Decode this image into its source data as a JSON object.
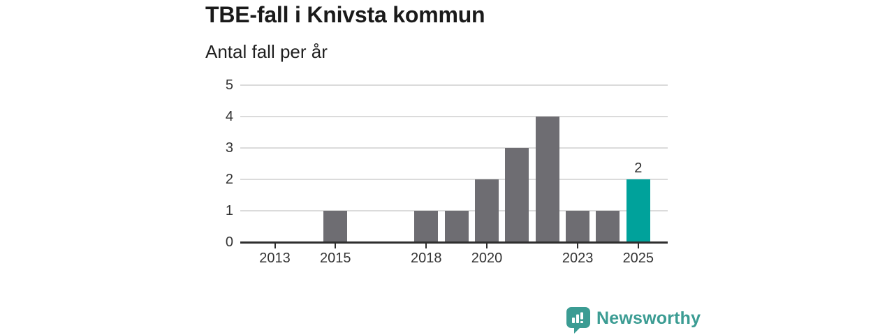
{
  "chart": {
    "title": "TBE-fall i Knivsta kommun",
    "subtitle": "Antal fall per år"
  },
  "chart_data": {
    "type": "bar",
    "title": "TBE-fall i Knivsta kommun",
    "subtitle": "Antal fall per år",
    "categories": [
      2012,
      2013,
      2014,
      2015,
      2016,
      2017,
      2018,
      2019,
      2020,
      2021,
      2022,
      2023,
      2024,
      2025
    ],
    "values": [
      0,
      0,
      0,
      1,
      0,
      0,
      1,
      1,
      2,
      3,
      4,
      1,
      1,
      2
    ],
    "x_tick_labels": [
      "2013",
      "2015",
      "2018",
      "2020",
      "2023",
      "2025"
    ],
    "y_tick_labels": [
      "0",
      "1",
      "2",
      "3",
      "4",
      "5"
    ],
    "ylim": [
      0,
      5
    ],
    "grid": true,
    "legend": "none",
    "highlight": {
      "year": 2025,
      "value": 2,
      "label": "2"
    },
    "colors": {
      "bar": "#6E6D72",
      "highlight": "#00A29B",
      "axis": "#2E2E2E",
      "gridline": "#DBDBDB",
      "tick_label": "#333333"
    }
  },
  "footer": {
    "brand": "Newsworthy",
    "brand_color": "#3B9C93"
  }
}
